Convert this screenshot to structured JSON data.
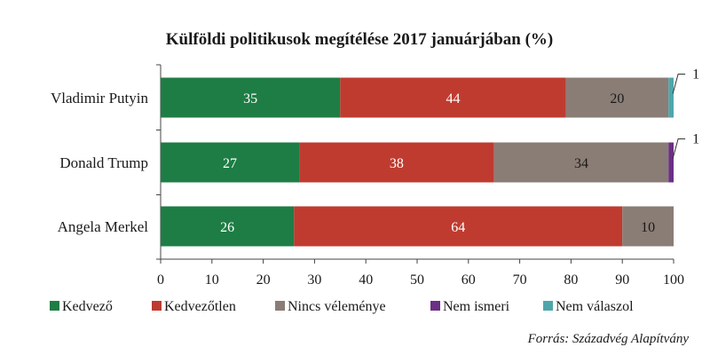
{
  "chart_data": {
    "type": "bar",
    "orientation": "horizontal",
    "stacked": true,
    "title": "Külföldi politikusok megítélése 2017 januárjában (%)",
    "categories": [
      "Vladimir Putyin",
      "Donald Trump",
      "Angela Merkel"
    ],
    "series": [
      {
        "name": "Kedvező",
        "color": "#1e7d45",
        "label_color": "#ffffff",
        "values": [
          35,
          27,
          26
        ]
      },
      {
        "name": "Kedvezőtlen",
        "color": "#bf3b30",
        "label_color": "#ffffff",
        "values": [
          44,
          38,
          64
        ]
      },
      {
        "name": "Nincs véleménye",
        "color": "#8a7d76",
        "label_color": "#1a1a1a",
        "values": [
          20,
          34,
          10
        ]
      },
      {
        "name": "Nem ismeri",
        "color": "#6b2f86",
        "label_color": "#ffffff",
        "values": [
          0,
          1,
          0
        ]
      },
      {
        "name": "Nem válaszol",
        "color": "#4ea6ab",
        "label_color": "#ffffff",
        "values": [
          1,
          0,
          0
        ]
      }
    ],
    "callouts": [
      {
        "category": "Vladimir Putyin",
        "series": "Nem válaszol",
        "label": "1"
      },
      {
        "category": "Donald Trump",
        "series": "Nem ismeri",
        "label": "1"
      }
    ],
    "xlim": [
      0,
      100
    ],
    "xticks": [
      0,
      10,
      20,
      30,
      40,
      50,
      60,
      70,
      80,
      90,
      100
    ],
    "xlabel": "",
    "ylabel": "",
    "grid": false,
    "legend_position": "bottom",
    "source": "Forrás: Századvég Alapítvány"
  }
}
